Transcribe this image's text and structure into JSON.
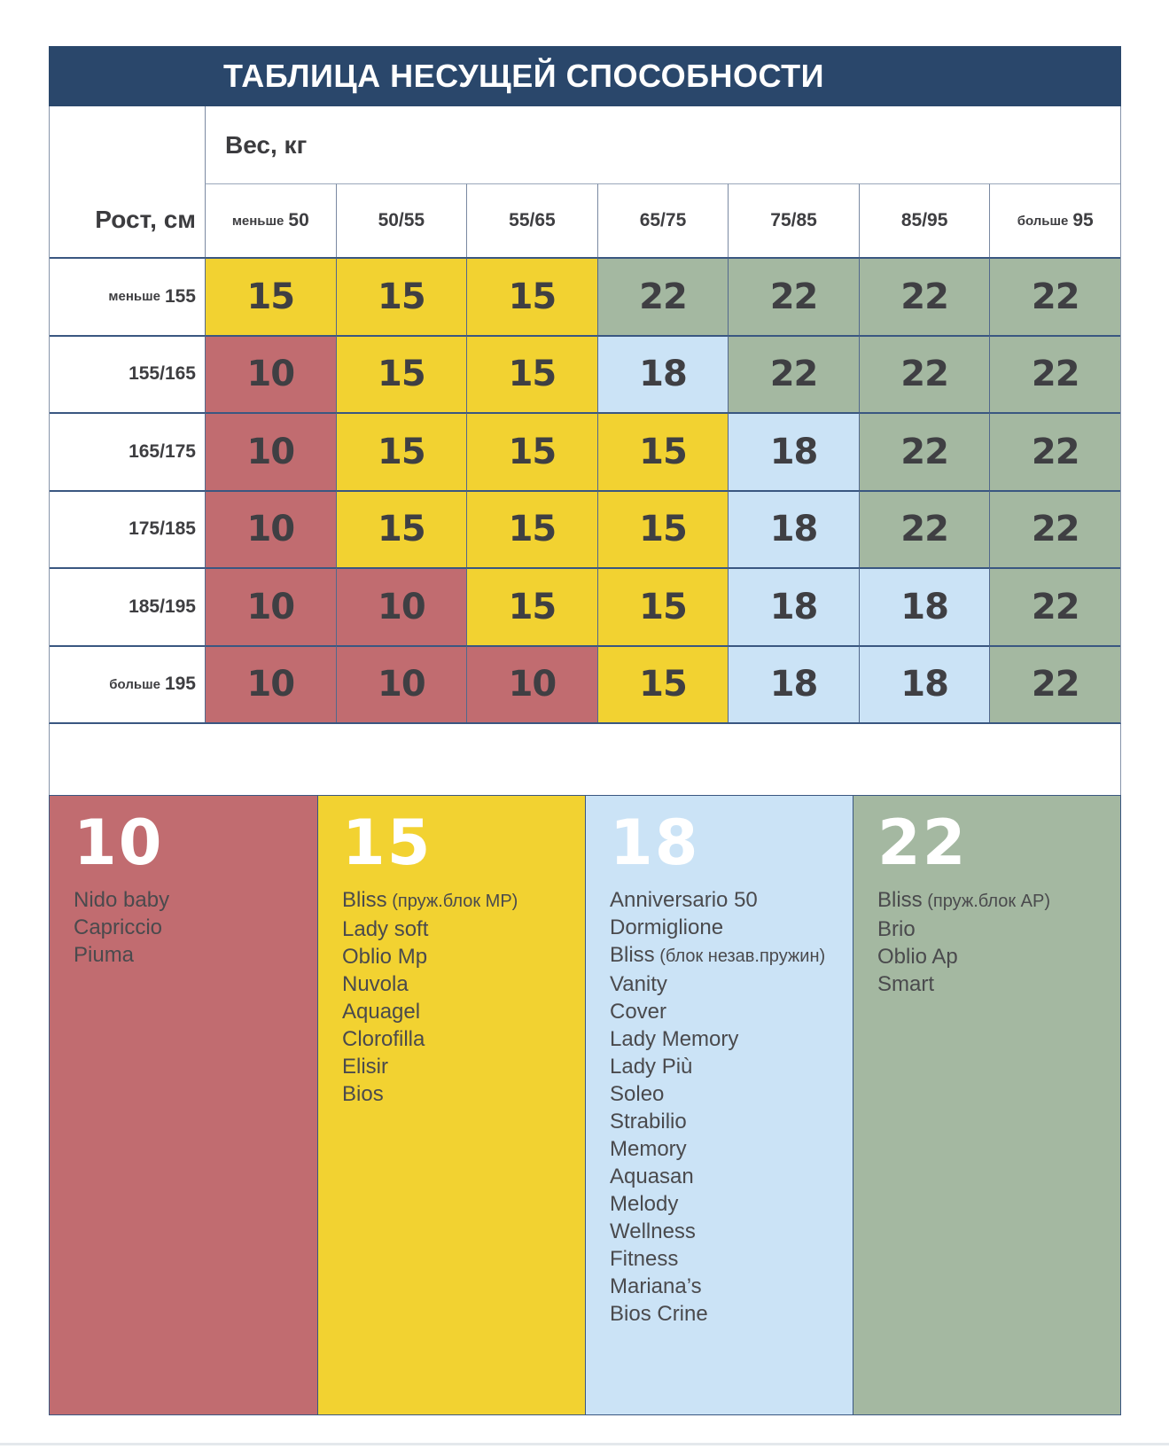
{
  "title": "ТАБЛИЦА НЕСУЩЕЙ СПОСОБНОСТИ",
  "colors": {
    "10": "#c16c70",
    "15": "#f2d231",
    "18": "#cbe3f6",
    "22": "#a4b8a1",
    "navy": "#2a476b"
  },
  "table": {
    "weight_header": "Вес, кг",
    "height_header": "Рост, см",
    "columns": [
      {
        "prefix": "меньше",
        "label": "50"
      },
      {
        "prefix": "",
        "label": "50/55"
      },
      {
        "prefix": "",
        "label": "55/65"
      },
      {
        "prefix": "",
        "label": "65/75"
      },
      {
        "prefix": "",
        "label": "75/85"
      },
      {
        "prefix": "",
        "label": "85/95"
      },
      {
        "prefix": "больше",
        "label": "95"
      }
    ],
    "rows": [
      {
        "prefix": "меньше",
        "label": "155"
      },
      {
        "prefix": "",
        "label": "155/165"
      },
      {
        "prefix": "",
        "label": "165/175"
      },
      {
        "prefix": "",
        "label": "175/185"
      },
      {
        "prefix": "",
        "label": "185/195"
      },
      {
        "prefix": "больше",
        "label": "195"
      }
    ],
    "values": [
      [
        15,
        15,
        15,
        22,
        22,
        22,
        22
      ],
      [
        10,
        15,
        15,
        18,
        22,
        22,
        22
      ],
      [
        10,
        15,
        15,
        15,
        18,
        22,
        22
      ],
      [
        10,
        15,
        15,
        15,
        18,
        22,
        22
      ],
      [
        10,
        10,
        15,
        15,
        18,
        18,
        22
      ],
      [
        10,
        10,
        10,
        15,
        18,
        18,
        22
      ]
    ]
  },
  "legend": [
    {
      "value": "10",
      "items": [
        {
          "name": "Nido baby",
          "note": ""
        },
        {
          "name": "Capriccio",
          "note": ""
        },
        {
          "name": "Piuma",
          "note": ""
        }
      ]
    },
    {
      "value": "15",
      "items": [
        {
          "name": "Bliss",
          "note": "(пруж.блок MP)"
        },
        {
          "name": "Lady soft",
          "note": ""
        },
        {
          "name": "Oblio Mp",
          "note": ""
        },
        {
          "name": "Nuvola",
          "note": ""
        },
        {
          "name": "Aquagel",
          "note": ""
        },
        {
          "name": "Clorofilla",
          "note": ""
        },
        {
          "name": "Elisir",
          "note": ""
        },
        {
          "name": "Bios",
          "note": ""
        }
      ]
    },
    {
      "value": "18",
      "items": [
        {
          "name": "Anniversario 50",
          "note": ""
        },
        {
          "name": "Dormiglione",
          "note": ""
        },
        {
          "name": "Bliss",
          "note": "(блок незав.пружин)"
        },
        {
          "name": "Vanity",
          "note": ""
        },
        {
          "name": "Cover",
          "note": ""
        },
        {
          "name": "Lady Memory",
          "note": ""
        },
        {
          "name": "Lady Più",
          "note": ""
        },
        {
          "name": "Soleo",
          "note": ""
        },
        {
          "name": "Strabilio",
          "note": ""
        },
        {
          "name": "Memory",
          "note": ""
        },
        {
          "name": "Aquasan",
          "note": ""
        },
        {
          "name": "Melody",
          "note": ""
        },
        {
          "name": "Wellness",
          "note": ""
        },
        {
          "name": "Fitness",
          "note": ""
        },
        {
          "name": "Mariana’s",
          "note": ""
        },
        {
          "name": "Bios Crine",
          "note": ""
        }
      ]
    },
    {
      "value": "22",
      "items": [
        {
          "name": "Bliss",
          "note": "(пруж.блок AP)"
        },
        {
          "name": "Brio",
          "note": ""
        },
        {
          "name": "Oblio Ap",
          "note": ""
        },
        {
          "name": "Smart",
          "note": ""
        }
      ]
    }
  ]
}
